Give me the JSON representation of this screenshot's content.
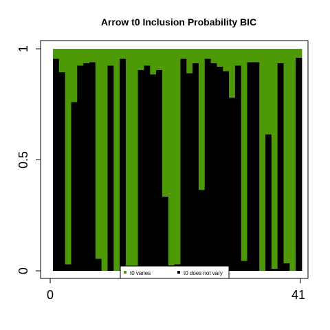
{
  "chart_data": {
    "type": "bar",
    "stacked": true,
    "title": "Arrow t0 Inclusion Probability BIC",
    "xlabel": "",
    "ylabel": "",
    "x_ticks": [
      "0",
      "41"
    ],
    "y_ticks": [
      "0",
      "0.5",
      "1"
    ],
    "ylim": [
      0,
      1
    ],
    "grid": false,
    "legend_position": "bottom-center",
    "series": [
      {
        "name": "t0 does not vary",
        "color": "#000000",
        "values": [
          0.955,
          0.895,
          0.03,
          0.76,
          0.925,
          0.935,
          0.94,
          0.055,
          0.0,
          0.925,
          0.0,
          0.955,
          0.0,
          0.0,
          0.905,
          0.925,
          0.885,
          0.905,
          0.335,
          0.025,
          0.03,
          0.955,
          0.89,
          0.935,
          0.365,
          0.955,
          0.935,
          0.92,
          0.9,
          0.78,
          0.925,
          0.045,
          0.94,
          0.94,
          0.0,
          0.615,
          0.01,
          0.935,
          0.035,
          0.0,
          0.96
        ]
      },
      {
        "name": "t0 varies",
        "color": "#4e9a06",
        "values": [
          0.045,
          0.105,
          0.97,
          0.24,
          0.075,
          0.065,
          0.06,
          0.945,
          1.0,
          0.075,
          1.0,
          0.045,
          1.0,
          1.0,
          0.095,
          0.075,
          0.115,
          0.095,
          0.665,
          0.975,
          0.97,
          0.045,
          0.11,
          0.065,
          0.635,
          0.045,
          0.065,
          0.08,
          0.1,
          0.22,
          0.075,
          0.955,
          0.06,
          0.06,
          1.0,
          0.385,
          0.99,
          0.065,
          0.965,
          1.0,
          0.04
        ]
      }
    ],
    "legend": [
      {
        "label": "t0 varies",
        "color": "#4e9a06"
      },
      {
        "label": "t0 does not vary",
        "color": "#000000"
      }
    ]
  }
}
